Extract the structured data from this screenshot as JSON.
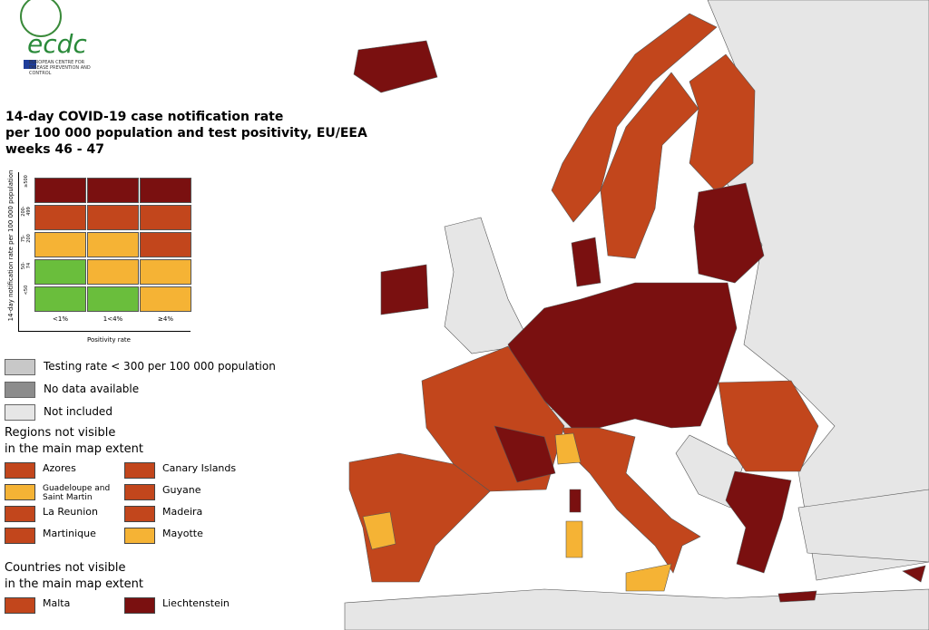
{
  "logo": {
    "text": "ecdc",
    "subtitle": "EUROPEAN CENTRE FOR DISEASE PREVENTION AND CONTROL"
  },
  "title": [
    "14-day COVID-19 case notification rate",
    "per 100 000 population and test positivity, EU/EEA",
    "weeks 46 - 47"
  ],
  "matrix": {
    "y_label": "14-day notification rate per 100 000 population",
    "x_label": "Positivity rate",
    "rows": [
      "≥500",
      "200-499",
      "75-200",
      "50-74",
      "<50"
    ],
    "columns": [
      "<1%",
      "1<4%",
      "≥4%"
    ],
    "colors": [
      [
        "#7a1010",
        "#7a1010",
        "#7a1010"
      ],
      [
        "#c2461c",
        "#c2461c",
        "#c2461c"
      ],
      [
        "#f5b335",
        "#f5b335",
        "#c2461c"
      ],
      [
        "#6abe3c",
        "#f5b335",
        "#f5b335"
      ],
      [
        "#6abe3c",
        "#6abe3c",
        "#f5b335"
      ]
    ]
  },
  "legend": [
    {
      "label": "Testing rate < 300 per 100 000 population",
      "color": "#c8c8c8"
    },
    {
      "label": "No data available",
      "color": "#8c8c8c"
    },
    {
      "label": "Not included",
      "color": "#e6e6e6"
    }
  ],
  "regions": {
    "title": [
      "Regions not visible",
      "in the main map extent"
    ],
    "items": [
      {
        "name": "Azores",
        "color": "#c2461c"
      },
      {
        "name": "Canary Islands",
        "color": "#c2461c"
      },
      {
        "name": "Guadeloupe and Saint Martin",
        "color": "#f5b335"
      },
      {
        "name": "Guyane",
        "color": "#c2461c"
      },
      {
        "name": "La Reunion",
        "color": "#c2461c"
      },
      {
        "name": "Madeira",
        "color": "#c2461c"
      },
      {
        "name": "Martinique",
        "color": "#c2461c"
      },
      {
        "name": "Mayotte",
        "color": "#f5b335"
      }
    ]
  },
  "countries": {
    "title": [
      "Countries not visible",
      "in the main map extent"
    ],
    "items": [
      {
        "name": "Malta",
        "color": "#c2461c"
      },
      {
        "name": "Liechtenstein",
        "color": "#7a1010"
      }
    ]
  }
}
